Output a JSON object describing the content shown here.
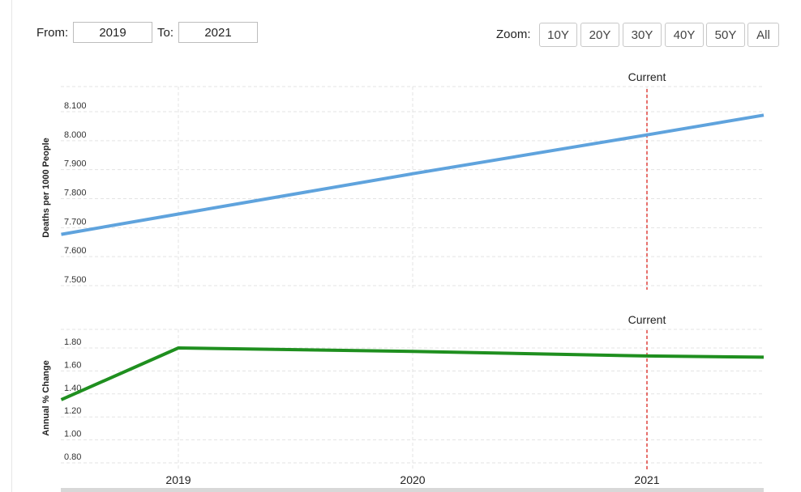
{
  "range": {
    "from_label": "From:",
    "from_value": "2019",
    "to_label": "To:",
    "to_value": "2021"
  },
  "zoom": {
    "label": "Zoom:",
    "buttons": [
      "10Y",
      "20Y",
      "30Y",
      "40Y",
      "50Y",
      "All"
    ]
  },
  "colors": {
    "deaths_line": "#5fa3dd",
    "change_line": "#1f8f1f",
    "current_marker": "#e0443e",
    "grid": "#e3e3e3"
  },
  "chart_data": [
    {
      "type": "line",
      "ylabel": "Deaths per 1000 People",
      "xlabel": "",
      "x_ticks": [
        "2019",
        "2020",
        "2021"
      ],
      "ylim": [
        7.5,
        8.1
      ],
      "y_ticks": [
        "7.500",
        "7.600",
        "7.700",
        "7.800",
        "7.900",
        "8.000",
        "8.100"
      ],
      "marker_label": "Current",
      "marker_x": 2021,
      "grid": true,
      "x": [
        2018.5,
        2019,
        2020,
        2021,
        2021.5
      ],
      "series": [
        {
          "values": [
            7.677,
            7.747,
            7.886,
            8.02,
            8.088
          ]
        }
      ]
    },
    {
      "type": "line",
      "ylabel": "Annual % Change",
      "xlabel": "",
      "x_ticks": [
        "2019",
        "2020",
        "2021"
      ],
      "ylim": [
        0.8,
        1.8
      ],
      "y_ticks": [
        "0.80",
        "1.00",
        "1.20",
        "1.40",
        "1.60",
        "1.80"
      ],
      "marker_label": "Current",
      "marker_x": 2021,
      "grid": true,
      "x": [
        2018.5,
        2019,
        2020,
        2021,
        2021.5
      ],
      "series": [
        {
          "values": [
            1.35,
            1.8,
            1.77,
            1.73,
            1.72
          ]
        }
      ]
    }
  ]
}
